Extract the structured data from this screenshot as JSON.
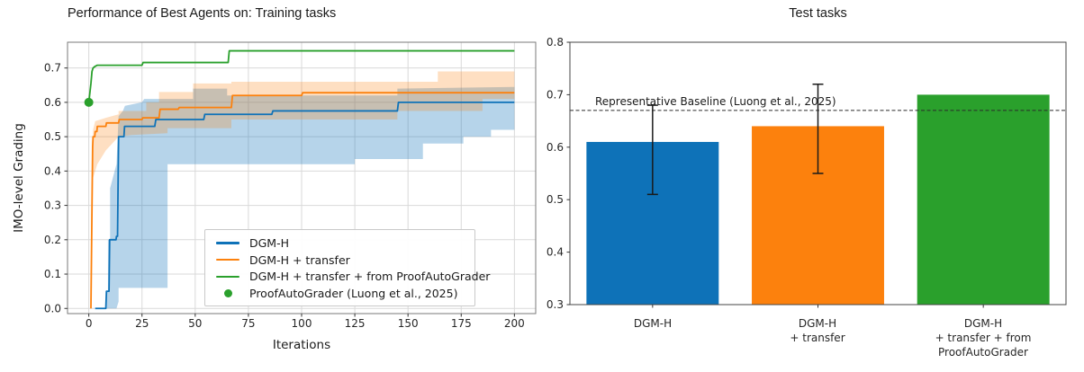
{
  "figure": {
    "background": "#ffffff",
    "colors": {
      "blue": "#0e72b8",
      "orange": "#fc810d",
      "green": "#2aa02c",
      "grid": "#d9d9d9",
      "spine_left": "#7a7a7a",
      "spine_right": "#454545",
      "tick": "#333333",
      "tick_text": "#262626",
      "error_bar": "#1a1a1a",
      "baseline_line": "#2b2b2b"
    }
  },
  "chart_data": [
    {
      "type": "line",
      "panel": "left",
      "title": "Performance of Best Agents on: Training tasks",
      "xlabel": "Iterations",
      "ylabel": "IMO-level Grading",
      "xlim": [
        -10,
        210
      ],
      "ylim": [
        -0.015,
        0.775
      ],
      "grid": true,
      "xtick_vals": [
        0,
        25,
        50,
        75,
        100,
        125,
        150,
        175,
        200
      ],
      "xtick_labels": [
        "0",
        "25",
        "50",
        "75",
        "100",
        "125",
        "150",
        "175",
        "200"
      ],
      "ytick_vals": [
        0.0,
        0.1,
        0.2,
        0.3,
        0.4,
        0.5,
        0.6,
        0.7
      ],
      "ytick_labels": [
        "0.0",
        "0.1",
        "0.2",
        "0.3",
        "0.4",
        "0.5",
        "0.6",
        "0.7"
      ],
      "series": [
        {
          "name": "DGM-H",
          "color_key": "blue",
          "final_value": 0.6,
          "points": [
            [
              3,
              0
            ],
            [
              8,
              0
            ],
            [
              8.3,
              0.05
            ],
            [
              9.5,
              0.05
            ],
            [
              9.8,
              0.2
            ],
            [
              12.8,
              0.2
            ],
            [
              13,
              0.21
            ],
            [
              13.5,
              0.21
            ],
            [
              14,
              0.5
            ],
            [
              16.5,
              0.5
            ],
            [
              16.8,
              0.53
            ],
            [
              31,
              0.53
            ],
            [
              31.5,
              0.55
            ],
            [
              54,
              0.55
            ],
            [
              54.5,
              0.565
            ],
            [
              86,
              0.565
            ],
            [
              86.5,
              0.575
            ],
            [
              145,
              0.575
            ],
            [
              145.5,
              0.6
            ],
            [
              200,
              0.6
            ]
          ],
          "band_upper": [
            [
              3,
              0
            ],
            [
              8,
              0
            ],
            [
              8,
              0.05
            ],
            [
              9,
              0.05
            ],
            [
              9,
              0.2
            ],
            [
              10,
              0.2
            ],
            [
              10,
              0.35
            ],
            [
              13,
              0.42
            ],
            [
              14,
              0.56
            ],
            [
              16,
              0.575
            ],
            [
              17,
              0.59
            ],
            [
              25,
              0.6
            ],
            [
              26,
              0.61
            ],
            [
              49,
              0.61
            ],
            [
              49,
              0.64
            ],
            [
              65,
              0.64
            ],
            [
              65,
              0.62
            ],
            [
              145,
              0.62
            ],
            [
              145,
              0.64
            ],
            [
              200,
              0.645
            ]
          ],
          "band_lower": [
            [
              3,
              0
            ],
            [
              13,
              0
            ],
            [
              14,
              0.02
            ],
            [
              14,
              0.06
            ],
            [
              37,
              0.06
            ],
            [
              37,
              0.42
            ],
            [
              125,
              0.42
            ],
            [
              125,
              0.435
            ],
            [
              157,
              0.435
            ],
            [
              157,
              0.48
            ],
            [
              176,
              0.48
            ],
            [
              176,
              0.5
            ],
            [
              189,
              0.5
            ],
            [
              189,
              0.52
            ],
            [
              200,
              0.52
            ]
          ]
        },
        {
          "name": "DGM-H + transfer",
          "color_key": "orange",
          "final_value": 0.63,
          "points": [
            [
              1,
              0
            ],
            [
              1.8,
              0.47
            ],
            [
              2,
              0.5
            ],
            [
              2.8,
              0.5
            ],
            [
              3,
              0.515
            ],
            [
              3.8,
              0.515
            ],
            [
              4,
              0.53
            ],
            [
              8,
              0.53
            ],
            [
              8.3,
              0.54
            ],
            [
              14,
              0.54
            ],
            [
              14.3,
              0.55
            ],
            [
              25,
              0.55
            ],
            [
              25.3,
              0.555
            ],
            [
              33,
              0.555
            ],
            [
              33.5,
              0.58
            ],
            [
              42,
              0.58
            ],
            [
              42.5,
              0.585
            ],
            [
              67,
              0.585
            ],
            [
              67.5,
              0.62
            ],
            [
              100,
              0.62
            ],
            [
              100.5,
              0.628
            ],
            [
              200,
              0.628
            ]
          ],
          "band_upper": [
            [
              1,
              0
            ],
            [
              2,
              0.52
            ],
            [
              3,
              0.545
            ],
            [
              8,
              0.555
            ],
            [
              14,
              0.565
            ],
            [
              14,
              0.575
            ],
            [
              27,
              0.575
            ],
            [
              27,
              0.6
            ],
            [
              33,
              0.6
            ],
            [
              33,
              0.63
            ],
            [
              49,
              0.63
            ],
            [
              49,
              0.655
            ],
            [
              67,
              0.655
            ],
            [
              67,
              0.66
            ],
            [
              164,
              0.66
            ],
            [
              164,
              0.69
            ],
            [
              200,
              0.69
            ]
          ],
          "band_lower": [
            [
              1,
              0
            ],
            [
              2,
              0.38
            ],
            [
              4,
              0.42
            ],
            [
              8,
              0.46
            ],
            [
              14,
              0.5
            ],
            [
              20,
              0.505
            ],
            [
              37,
              0.51
            ],
            [
              37,
              0.525
            ],
            [
              67,
              0.525
            ],
            [
              67,
              0.55
            ],
            [
              145,
              0.55
            ],
            [
              145,
              0.575
            ],
            [
              185,
              0.575
            ],
            [
              185,
              0.61
            ],
            [
              200,
              0.61
            ]
          ]
        },
        {
          "name": "DGM-H + transfer + from ProofAutoGrader",
          "color_key": "green",
          "final_value": 0.75,
          "points": [
            [
              0,
              0.6
            ],
            [
              1,
              0.655
            ],
            [
              1.5,
              0.69
            ],
            [
              2,
              0.7
            ],
            [
              3,
              0.705
            ],
            [
              4,
              0.708
            ],
            [
              25,
              0.708
            ],
            [
              25.5,
              0.716
            ],
            [
              65.5,
              0.716
            ],
            [
              66,
              0.75
            ],
            [
              200,
              0.75
            ]
          ]
        }
      ],
      "marker": {
        "name": "ProofAutoGrader (Luong et al., 2025)",
        "color_key": "green",
        "point": [
          0,
          0.6
        ]
      },
      "legend": {
        "position": "lower right",
        "entries": [
          {
            "label": "DGM-H",
            "swatch": "line",
            "color_key": "blue"
          },
          {
            "label": "DGM-H + transfer",
            "swatch": "line",
            "color_key": "orange"
          },
          {
            "label": "DGM-H + transfer + from ProofAutoGrader",
            "swatch": "line",
            "color_key": "green"
          },
          {
            "label": "ProofAutoGrader (Luong et al., 2025)",
            "swatch": "dot",
            "color_key": "green"
          }
        ]
      }
    },
    {
      "type": "bar",
      "panel": "right",
      "title": "Test tasks",
      "categories": [
        "DGM-H",
        "DGM-H\n+ transfer",
        "DGM-H\n+ transfer + from\nProofAutoGrader"
      ],
      "values": [
        0.61,
        0.64,
        0.7
      ],
      "bar_color_keys": [
        "blue",
        "orange",
        "green"
      ],
      "error_bars": [
        {
          "low": 0.51,
          "high": 0.68
        },
        {
          "low": 0.55,
          "high": 0.72
        },
        null
      ],
      "ylim": [
        0.3,
        0.8
      ],
      "grid": false,
      "ytick_vals": [
        0.3,
        0.4,
        0.5,
        0.6,
        0.7,
        0.8
      ],
      "ytick_labels": [
        "0.3",
        "0.4",
        "0.5",
        "0.6",
        "0.7",
        "0.8"
      ],
      "baseline": {
        "value": 0.67,
        "label": "Representative Baseline (Luong et al., 2025)"
      }
    }
  ]
}
